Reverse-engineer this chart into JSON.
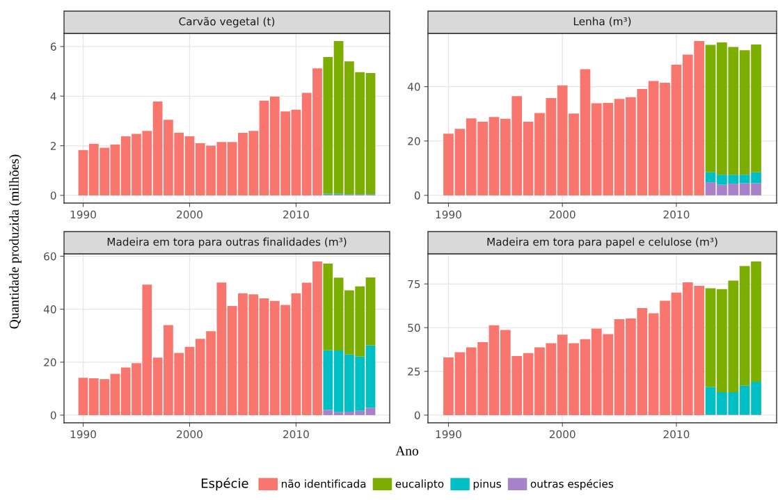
{
  "chart_data": [
    {
      "type": "bar",
      "stacked": true,
      "title": "Carvão vegetal (t)",
      "ylabel": "Quantidade produzida (milhões)",
      "xlabel": "Ano",
      "legend": "bottom",
      "legend_title": "Espécie",
      "grid": true,
      "x": [
        1990,
        1991,
        1992,
        1993,
        1994,
        1995,
        1996,
        1997,
        1998,
        1999,
        2000,
        2001,
        2002,
        2003,
        2004,
        2005,
        2006,
        2007,
        2008,
        2009,
        2010,
        2011,
        2012,
        2013,
        2014,
        2015,
        2016,
        2017
      ],
      "xlim": [
        1988.2,
        2018.8
      ],
      "xticks": [
        1990,
        2000,
        2010
      ],
      "ylim": [
        -0.31,
        6.53
      ],
      "yticks": [
        0,
        2,
        4,
        6
      ],
      "series": [
        {
          "name": "não identificada",
          "color": "#f8766d",
          "values": [
            1.83,
            2.08,
            1.92,
            2.05,
            2.38,
            2.48,
            2.6,
            3.78,
            3.05,
            2.53,
            2.38,
            2.1,
            2.0,
            2.15,
            2.15,
            2.52,
            2.6,
            3.82,
            3.98,
            3.38,
            3.45,
            4.13,
            5.12,
            null,
            null,
            null,
            null,
            null
          ]
        },
        {
          "name": "outras espécies",
          "color": "#a882c9",
          "values": [
            null,
            null,
            null,
            null,
            null,
            null,
            null,
            null,
            null,
            null,
            null,
            null,
            null,
            null,
            null,
            null,
            null,
            null,
            null,
            null,
            null,
            null,
            null,
            0.03,
            0.03,
            0.03,
            0.03,
            0.03
          ]
        },
        {
          "name": "pinus",
          "color": "#00bfc4",
          "values": [
            null,
            null,
            null,
            null,
            null,
            null,
            null,
            null,
            null,
            null,
            null,
            null,
            null,
            null,
            null,
            null,
            null,
            null,
            null,
            null,
            null,
            null,
            null,
            0.03,
            0.03,
            0.02,
            0.02,
            0.02
          ]
        },
        {
          "name": "eucalipto",
          "color": "#7cae00",
          "values": [
            null,
            null,
            null,
            null,
            null,
            null,
            null,
            null,
            null,
            null,
            null,
            null,
            null,
            null,
            null,
            null,
            null,
            null,
            null,
            null,
            null,
            null,
            null,
            5.52,
            6.16,
            5.35,
            4.92,
            4.88
          ]
        }
      ]
    },
    {
      "type": "bar",
      "stacked": true,
      "title": "Lenha (m³)",
      "grid": true,
      "x": [
        1990,
        1991,
        1992,
        1993,
        1994,
        1995,
        1996,
        1997,
        1998,
        1999,
        2000,
        2001,
        2002,
        2003,
        2004,
        2005,
        2006,
        2007,
        2008,
        2009,
        2010,
        2011,
        2012,
        2013,
        2014,
        2015,
        2016,
        2017
      ],
      "xlim": [
        1988.2,
        2018.8
      ],
      "xticks": [
        1990,
        2000,
        2010
      ],
      "ylim": [
        -2.84,
        59.6
      ],
      "yticks": [
        0,
        20,
        40
      ],
      "series": [
        {
          "name": "não identificada",
          "color": "#f8766d",
          "values": [
            22.7,
            24.5,
            28.3,
            27.1,
            28.8,
            28.2,
            36.5,
            27.1,
            30.3,
            35.8,
            40.5,
            30.1,
            46.4,
            33.9,
            34.0,
            35.5,
            36.1,
            39.1,
            42.1,
            41.4,
            48.1,
            51.8,
            56.8,
            null,
            null,
            null,
            null,
            null
          ]
        },
        {
          "name": "outras espécies",
          "color": "#a882c9",
          "values": [
            null,
            null,
            null,
            null,
            null,
            null,
            null,
            null,
            null,
            null,
            null,
            null,
            null,
            null,
            null,
            null,
            null,
            null,
            null,
            null,
            null,
            null,
            null,
            4.8,
            3.9,
            4.3,
            4.5,
            4.5
          ]
        },
        {
          "name": "pinus",
          "color": "#00bfc4",
          "values": [
            null,
            null,
            null,
            null,
            null,
            null,
            null,
            null,
            null,
            null,
            null,
            null,
            null,
            null,
            null,
            null,
            null,
            null,
            null,
            null,
            null,
            null,
            null,
            3.7,
            3.7,
            3.3,
            3.1,
            4.0
          ]
        },
        {
          "name": "eucalipto",
          "color": "#7cae00",
          "values": [
            null,
            null,
            null,
            null,
            null,
            null,
            null,
            null,
            null,
            null,
            null,
            null,
            null,
            null,
            null,
            null,
            null,
            null,
            null,
            null,
            null,
            null,
            null,
            46.9,
            48.7,
            47.0,
            45.8,
            47.0
          ]
        }
      ]
    },
    {
      "type": "bar",
      "stacked": true,
      "title": "Madeira em tora para outras finalidades (m³)",
      "grid": true,
      "x": [
        1990,
        1991,
        1992,
        1993,
        1994,
        1995,
        1996,
        1997,
        1998,
        1999,
        2000,
        2001,
        2002,
        2003,
        2004,
        2005,
        2006,
        2007,
        2008,
        2009,
        2010,
        2011,
        2012,
        2013,
        2014,
        2015,
        2016,
        2017
      ],
      "xlim": [
        1988.2,
        2018.8
      ],
      "xticks": [
        1990,
        2000,
        2010
      ],
      "ylim": [
        -2.9,
        60.9
      ],
      "yticks": [
        0,
        20,
        40,
        60
      ],
      "series": [
        {
          "name": "não identificada",
          "color": "#f8766d",
          "values": [
            14.1,
            13.9,
            13.6,
            15.6,
            18.0,
            19.6,
            49.3,
            21.7,
            34.0,
            23.5,
            25.8,
            28.8,
            31.7,
            50.1,
            41.2,
            46.0,
            45.6,
            44.1,
            43.1,
            41.6,
            46.0,
            50.0,
            58.0,
            null,
            null,
            null,
            null,
            null
          ]
        },
        {
          "name": "outras espécies",
          "color": "#a882c9",
          "values": [
            null,
            null,
            null,
            null,
            null,
            null,
            null,
            null,
            null,
            null,
            null,
            null,
            null,
            null,
            null,
            null,
            null,
            null,
            null,
            null,
            null,
            null,
            null,
            2.0,
            1.1,
            1.3,
            1.6,
            2.8
          ]
        },
        {
          "name": "pinus",
          "color": "#00bfc4",
          "values": [
            null,
            null,
            null,
            null,
            null,
            null,
            null,
            null,
            null,
            null,
            null,
            null,
            null,
            null,
            null,
            null,
            null,
            null,
            null,
            null,
            null,
            null,
            null,
            22.5,
            23.3,
            21.6,
            20.5,
            23.5
          ]
        },
        {
          "name": "eucalipto",
          "color": "#7cae00",
          "values": [
            null,
            null,
            null,
            null,
            null,
            null,
            null,
            null,
            null,
            null,
            null,
            null,
            null,
            null,
            null,
            null,
            null,
            null,
            null,
            null,
            null,
            null,
            null,
            32.7,
            27.5,
            24.2,
            26.5,
            25.7
          ]
        }
      ]
    },
    {
      "type": "bar",
      "stacked": true,
      "title": "Madeira em tora para papel e celulose (m³)",
      "grid": true,
      "x": [
        1990,
        1991,
        1992,
        1993,
        1994,
        1995,
        1996,
        1997,
        1998,
        1999,
        2000,
        2001,
        2002,
        2003,
        2004,
        2005,
        2006,
        2007,
        2008,
        2009,
        2010,
        2011,
        2012,
        2013,
        2014,
        2015,
        2016,
        2017
      ],
      "xlim": [
        1988.2,
        2018.8
      ],
      "xticks": [
        1990,
        2000,
        2010
      ],
      "ylim": [
        -4.4,
        92.2
      ],
      "yticks": [
        0,
        25,
        50,
        75
      ],
      "series": [
        {
          "name": "não identificada",
          "color": "#f8766d",
          "values": [
            33.0,
            35.9,
            38.7,
            41.7,
            51.4,
            48.7,
            33.8,
            35.5,
            38.7,
            41.1,
            46.0,
            41.1,
            43.4,
            49.5,
            46.3,
            54.8,
            55.2,
            61.2,
            58.2,
            65.4,
            70.0,
            75.9,
            73.9,
            null,
            null,
            null,
            null,
            null
          ]
        },
        {
          "name": "outras espécies",
          "color": "#a882c9",
          "values": [
            null,
            null,
            null,
            null,
            null,
            null,
            null,
            null,
            null,
            null,
            null,
            null,
            null,
            null,
            null,
            null,
            null,
            null,
            null,
            null,
            null,
            null,
            null,
            0.3,
            0.3,
            0.3,
            0.3,
            0.3
          ]
        },
        {
          "name": "pinus",
          "color": "#00bfc4",
          "values": [
            null,
            null,
            null,
            null,
            null,
            null,
            null,
            null,
            null,
            null,
            null,
            null,
            null,
            null,
            null,
            null,
            null,
            null,
            null,
            null,
            null,
            null,
            null,
            15.8,
            12.8,
            12.8,
            16.5,
            18.8
          ]
        },
        {
          "name": "eucalipto",
          "color": "#7cae00",
          "values": [
            null,
            null,
            null,
            null,
            null,
            null,
            null,
            null,
            null,
            null,
            null,
            null,
            null,
            null,
            null,
            null,
            null,
            null,
            null,
            null,
            null,
            null,
            null,
            56.4,
            58.9,
            63.8,
            68.4,
            68.7
          ]
        }
      ]
    }
  ]
}
